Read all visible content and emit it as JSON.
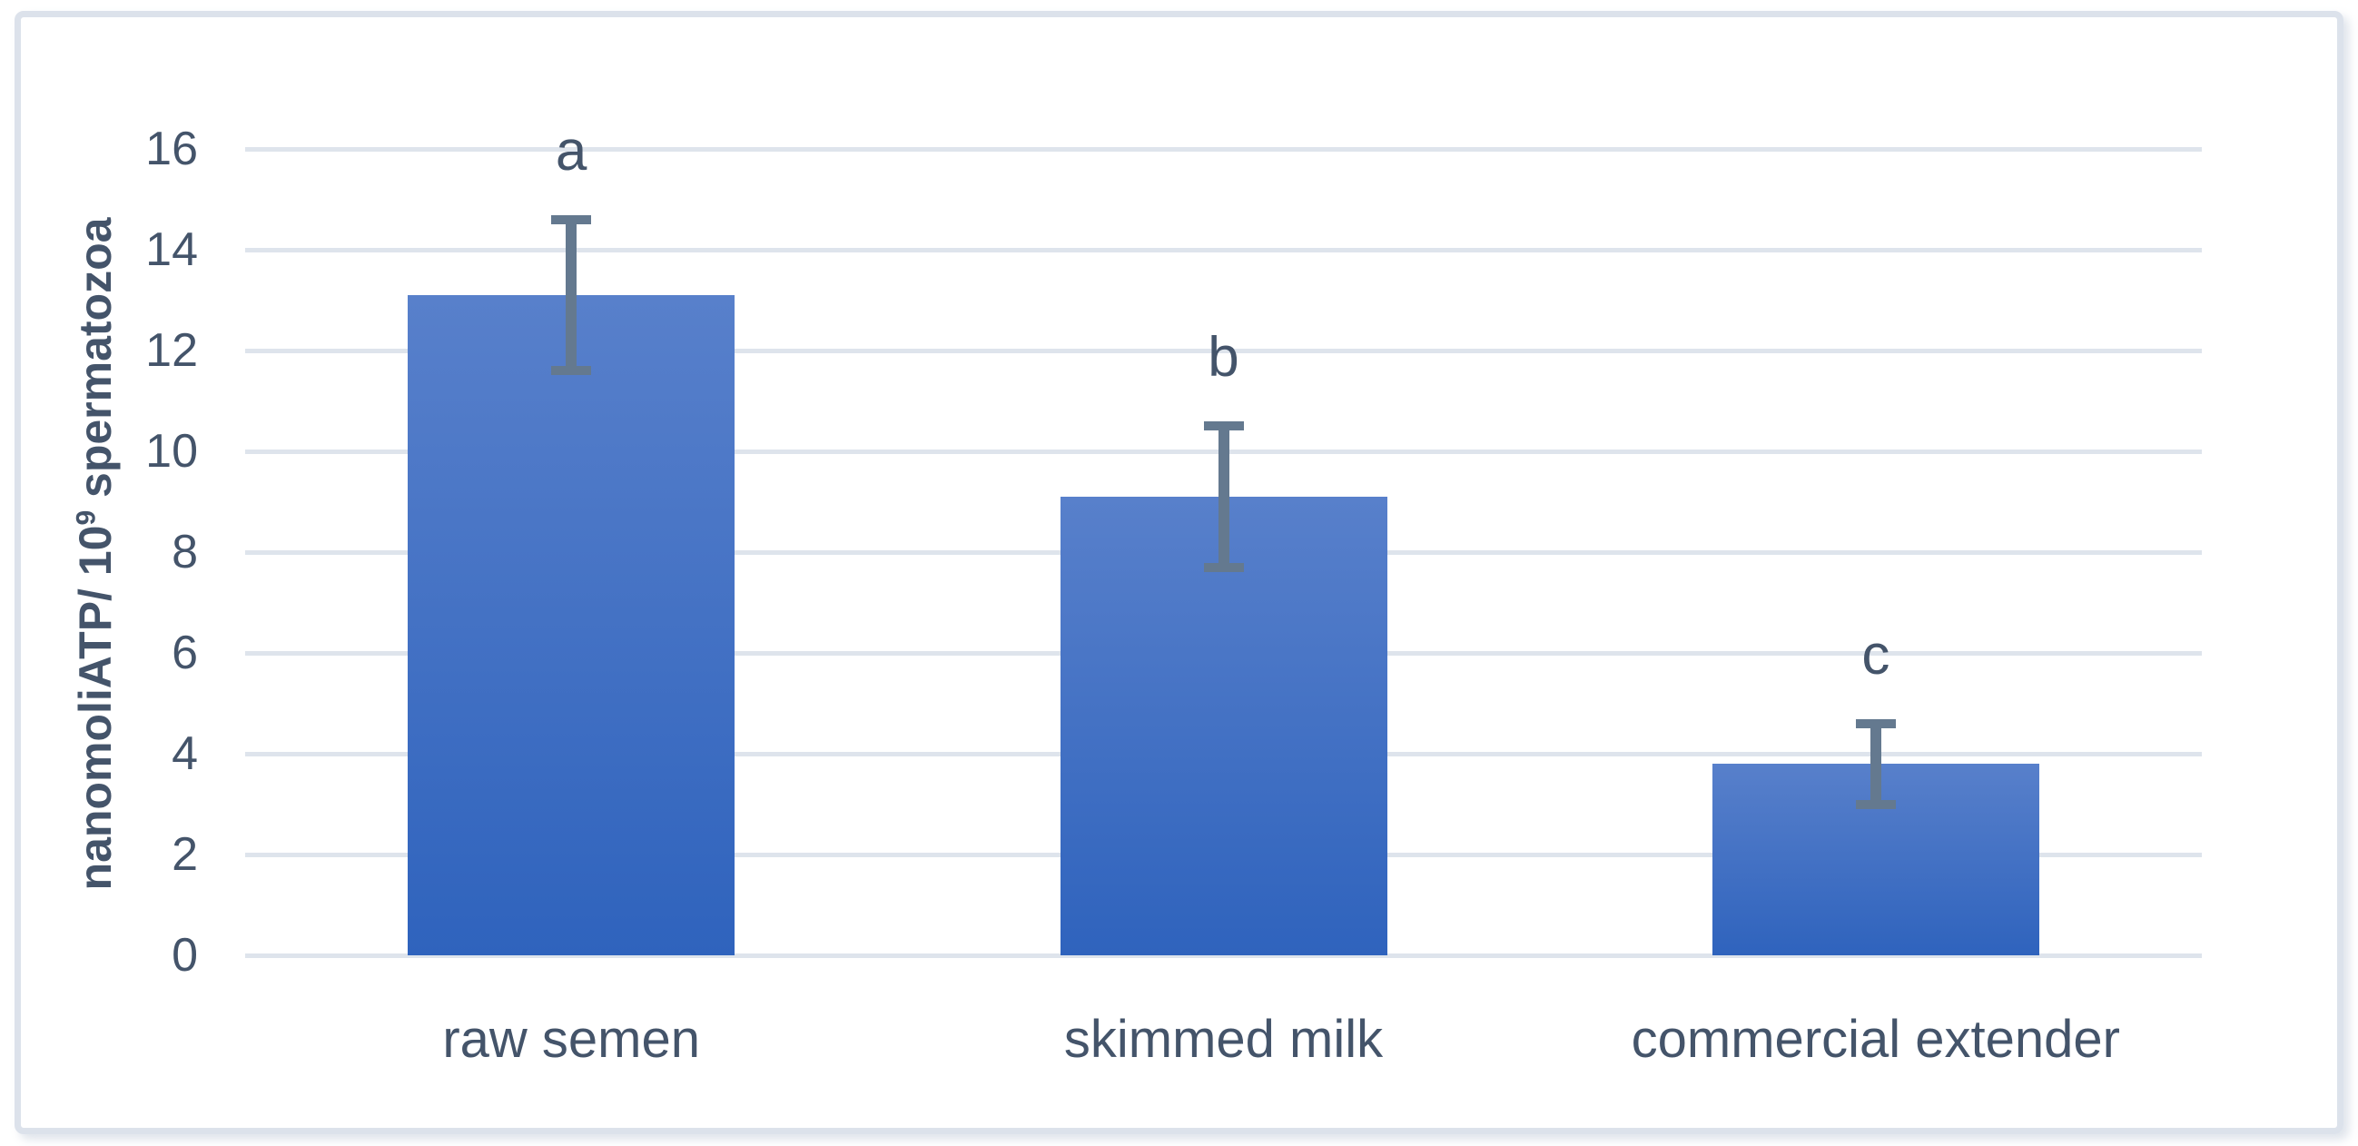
{
  "chart_data": {
    "type": "bar",
    "title": "",
    "categories": [
      "raw semen",
      "skimmed milk",
      "commercial extender"
    ],
    "values": [
      13.1,
      9.1,
      3.8
    ],
    "errors": [
      1.5,
      1.4,
      0.8
    ],
    "significance_letters": [
      "a",
      "b",
      "c"
    ],
    "ylabel": "nanomoliATP/ 10⁹ spermatozoa",
    "ylabel_parts": {
      "prefix": "nanomoliATP/ 10",
      "sup": "9",
      "suffix": " spermatozoa"
    },
    "xlabel": "",
    "yticks": [
      0,
      2,
      4,
      6,
      8,
      10,
      12,
      14,
      16
    ],
    "ylim": [
      0,
      16
    ],
    "grid": "horizontal",
    "legend": "none",
    "colors": {
      "bar_gradient_top": "#5880CB",
      "bar_gradient_bottom": "#2F63BD",
      "error_bar": "#64798F",
      "text": "#44546A",
      "gridline": "#DEE4EC",
      "frame_border": "#DCE2EB",
      "background": "#FFFFFF"
    }
  }
}
